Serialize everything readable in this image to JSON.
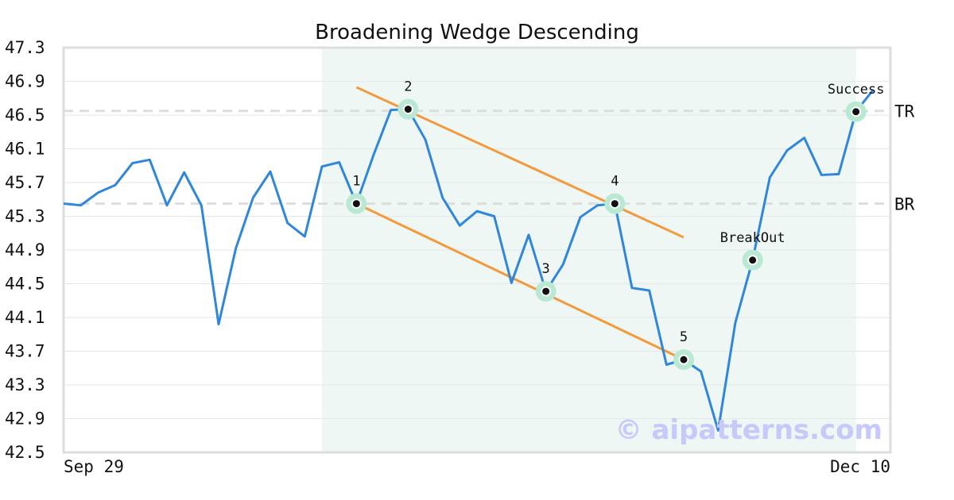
{
  "chart_data": {
    "type": "line",
    "title": "Broadening Wedge Descending",
    "ylim": [
      42.5,
      47.3
    ],
    "y_ticks": [
      "47.3",
      "46.9",
      "46.5",
      "46.1",
      "45.7",
      "45.3",
      "44.9",
      "44.5",
      "44.1",
      "43.7",
      "43.3",
      "42.9",
      "42.5"
    ],
    "x_labels": [
      "Sep 29",
      "Dec 10"
    ],
    "grid": true,
    "colors": {
      "line": "#2f86dd",
      "trend": "#f39a3c",
      "highlight": "#eef7f3",
      "marker_halo": "#b9e8d3",
      "reference": "#dddddd"
    },
    "series": [
      {
        "x": [
          0,
          1,
          2,
          3,
          4,
          5,
          6,
          7,
          8,
          9,
          10,
          11,
          12,
          13,
          14,
          15,
          16,
          17,
          18,
          19,
          20,
          21,
          22,
          23,
          24,
          25,
          26,
          27,
          28,
          29,
          30,
          31,
          32,
          33,
          34,
          35,
          36,
          37,
          38,
          39,
          40,
          41,
          42,
          43,
          44,
          45,
          46,
          47
        ],
        "values": [
          45.45,
          45.43,
          45.58,
          45.67,
          45.93,
          45.97,
          45.43,
          45.82,
          45.43,
          44.02,
          44.92,
          45.52,
          45.83,
          45.22,
          45.06,
          45.89,
          45.94,
          45.45,
          46.03,
          46.56,
          46.57,
          46.21,
          45.52,
          45.19,
          45.36,
          45.3,
          44.51,
          45.08,
          44.41,
          44.73,
          45.29,
          45.43,
          45.45,
          44.45,
          44.42,
          43.54,
          43.6,
          43.46,
          42.76,
          44.04,
          44.78,
          45.76,
          46.08,
          46.23,
          45.79,
          45.8,
          46.54,
          46.8
        ]
      }
    ],
    "highlight_range": [
      15,
      46
    ],
    "reference_lines": [
      {
        "label": "TR",
        "y": 46.55
      },
      {
        "label": "BR",
        "y": 45.45
      }
    ],
    "trend_lines": [
      {
        "name": "upper",
        "from": [
          17,
          46.83
        ],
        "to": [
          36,
          45.05
        ]
      },
      {
        "name": "lower",
        "from": [
          17,
          45.45
        ],
        "to": [
          36,
          43.6
        ]
      }
    ],
    "points": [
      {
        "label": "1",
        "x": 17,
        "y": 45.45
      },
      {
        "label": "2",
        "x": 20,
        "y": 46.57
      },
      {
        "label": "3",
        "x": 28,
        "y": 44.41
      },
      {
        "label": "4",
        "x": 32,
        "y": 45.45
      },
      {
        "label": "5",
        "x": 36,
        "y": 43.6
      },
      {
        "label": "BreakOut",
        "x": 40,
        "y": 44.78
      },
      {
        "label": "Success",
        "x": 46,
        "y": 46.54
      }
    ],
    "watermark": "© aipatterns.com"
  }
}
